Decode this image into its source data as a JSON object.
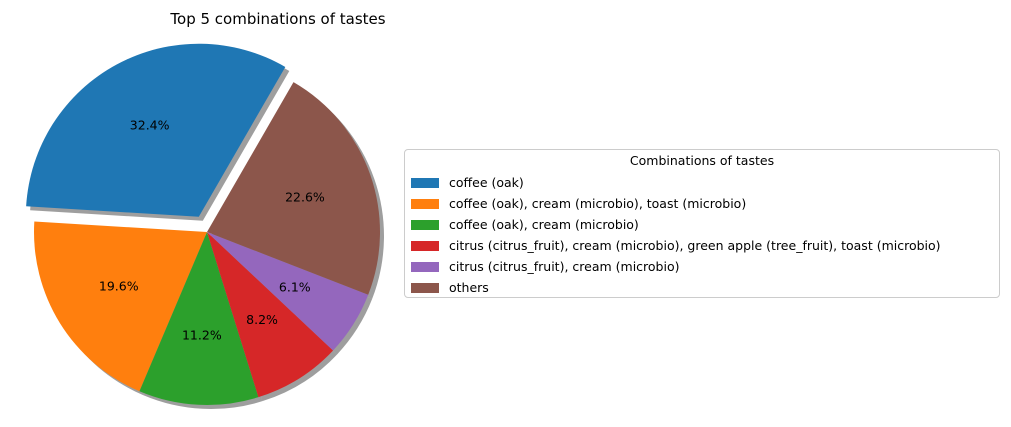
{
  "chart_data": {
    "type": "pie",
    "title": "Top 5 combinations of tastes",
    "legend_title": "Combinations of tastes",
    "legend_position": "right",
    "shadow": true,
    "start_angle_deg": 60,
    "explode": [
      0.1,
      0,
      0,
      0,
      0,
      0
    ],
    "slices": [
      {
        "label": "coffee (oak)",
        "value": 32.4,
        "display": "32.4%",
        "color": "#1f77b4"
      },
      {
        "label": "coffee (oak), cream (microbio), toast (microbio)",
        "value": 19.6,
        "display": "19.6%",
        "color": "#ff7f0e"
      },
      {
        "label": "coffee (oak), cream (microbio)",
        "value": 11.2,
        "display": "11.2%",
        "color": "#2ca02c"
      },
      {
        "label": "citrus (citrus_fruit), cream (microbio), green apple (tree_fruit), toast (microbio)",
        "value": 8.2,
        "display": "8.2%",
        "color": "#d62728"
      },
      {
        "label": "citrus (citrus_fruit), cream (microbio)",
        "value": 6.1,
        "display": "6.1%",
        "color": "#9467bd"
      },
      {
        "label": "others",
        "value": 22.6,
        "display": "22.6%",
        "color": "#8c564b"
      }
    ]
  }
}
